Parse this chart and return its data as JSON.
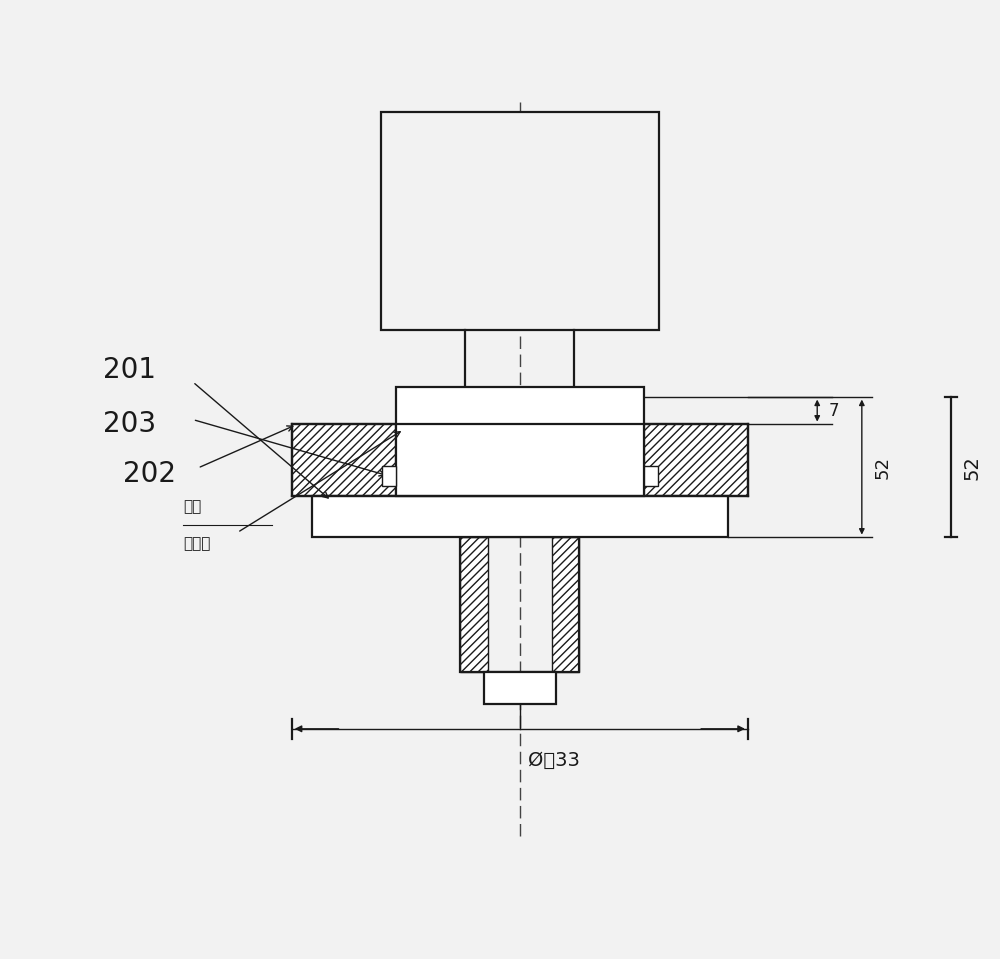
{
  "bg_color": "#f2f2f2",
  "line_color": "#1a1a1a",
  "centerline_color": "#444444",
  "lw": 1.6,
  "lw_thin": 1.0,
  "figsize": [
    10.0,
    9.59
  ],
  "dpi": 100,
  "labels": {
    "weld_line1": "焊点",
    "weld_line2": "密封面",
    "n202": "202",
    "n203": "203",
    "n201": "201"
  },
  "dim_labels": {
    "d52": "52",
    "d7": "7",
    "d33": "Ø｜33"
  }
}
